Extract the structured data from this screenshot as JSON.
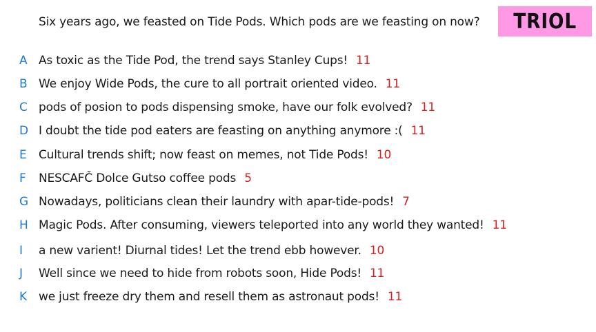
{
  "question": "Six years ago, we feasted on Tide Pods. Which pods are we feasting on now?",
  "logo": "TRIOL",
  "answers": [
    {
      "letter": "A",
      "text": "As toxic as the Tide Pod, the trend says Stanley Cups!",
      "count": "11"
    },
    {
      "letter": "B",
      "text": "We enjoy Wide Pods, the cure to all portrait oriented video.",
      "count": "11"
    },
    {
      "letter": "C",
      "text": "pods of posion to pods dispensing smoke, have our folk evolved?",
      "count": "11"
    },
    {
      "letter": "D",
      "text": "I doubt the tide pod eaters are feasting on anything anymore :(",
      "count": "11"
    },
    {
      "letter": "E",
      "text": "Cultural trends shift; now feast on memes, not Tide Pods!",
      "count": "10"
    },
    {
      "letter": "F",
      "text": "NESCAFČ Dolce Gutso coffee pods",
      "count": "5"
    },
    {
      "letter": "G",
      "text": "Nowadays, politicians clean their laundry with apar-tide-pods!",
      "count": "7"
    },
    {
      "letter": "H",
      "text": "Magic Pods. After consuming, viewers teleported into any world they wanted!",
      "count": "11"
    },
    {
      "letter": "I",
      "text": "a new varient! Diurnal tides! Let the trend ebb however.",
      "count": "10"
    },
    {
      "letter": "J",
      "text": "Well since we need to hide from robots soon, Hide Pods!",
      "count": "11"
    },
    {
      "letter": "K",
      "text": "we just freeze dry them and resell them as astronaut pods!",
      "count": "11"
    }
  ],
  "colors": {
    "letter": "#1e7ad6",
    "count": "#d42020",
    "logo_bg": "#ff99e6"
  }
}
